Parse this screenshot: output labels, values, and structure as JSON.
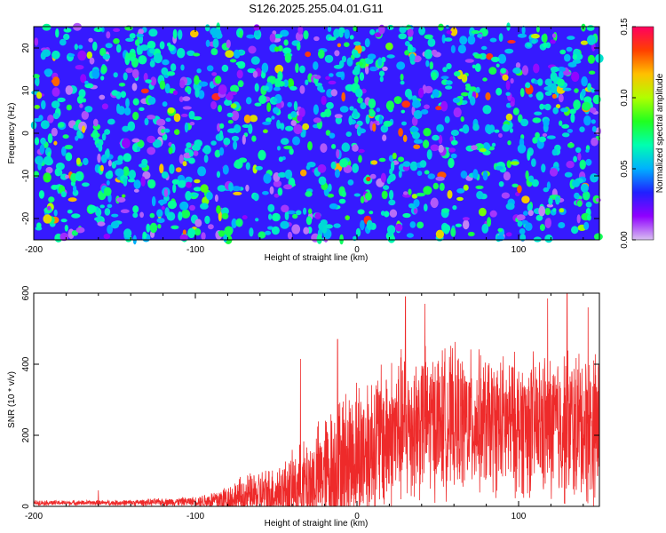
{
  "title": "S126.2025.255.04.01.G11",
  "chart_data": [
    {
      "type": "heatmap",
      "title": "S126.2025.255.04.01.G11",
      "xlabel": "Height of straight line (km)",
      "ylabel": "Frequency (Hz)",
      "xlim": [
        -200,
        150
      ],
      "ylim": [
        -25,
        25
      ],
      "xticks": [
        -200,
        -100,
        0,
        100
      ],
      "yticks": [
        -20,
        -10,
        0,
        10,
        20
      ],
      "colorbar": {
        "label": "Normalized spectral amplitude",
        "range": [
          0,
          0.15
        ],
        "ticks": [
          "0.00",
          "0.05",
          "0.10",
          "0.15"
        ],
        "colormap": [
          "#d8c0f0",
          "#9000ff",
          "#2020ff",
          "#00b0ff",
          "#00ffb0",
          "#20ff20",
          "#b0ff00",
          "#ffc000",
          "#ff4000",
          "#ff0060"
        ]
      },
      "background_level": 0.03,
      "typical_peak_level": 0.06,
      "max_peak_level": 0.14
    },
    {
      "type": "line",
      "xlabel": "Height of straight line (km)",
      "ylabel": "SNR (10 * v/v)",
      "xlim": [
        -200,
        150
      ],
      "ylim": [
        0,
        600
      ],
      "xticks": [
        -200,
        -100,
        0,
        100
      ],
      "yticks": [
        0,
        200,
        400,
        600
      ],
      "series": [
        {
          "name": "SNR",
          "color": "#ee2a2a",
          "x": [
            -200,
            -180,
            -160,
            -140,
            -120,
            -100,
            -90,
            -80,
            -70,
            -60,
            -50,
            -40,
            -30,
            -20,
            -10,
            0,
            10,
            20,
            30,
            40,
            50,
            60,
            70,
            80,
            90,
            100,
            110,
            120,
            130,
            140,
            150
          ],
          "base": [
            10,
            10,
            10,
            10,
            12,
            14,
            16,
            20,
            25,
            32,
            40,
            50,
            65,
            90,
            120,
            150,
            175,
            200,
            220,
            235,
            240,
            240,
            235,
            232,
            230,
            228,
            226,
            225,
            225,
            225,
            225
          ],
          "amplitude": [
            8,
            8,
            8,
            10,
            12,
            15,
            30,
            50,
            70,
            80,
            90,
            110,
            150,
            190,
            220,
            240,
            250,
            250,
            250,
            240,
            235,
            230,
            225,
            220,
            220,
            225,
            230,
            240,
            250,
            250,
            250
          ],
          "peaks": [
            [
              -160,
              45
            ],
            [
              -35,
              415
            ],
            [
              -12,
              470
            ],
            [
              30,
              590
            ],
            [
              42,
              570
            ],
            [
              118,
              585
            ],
            [
              130,
              600
            ],
            [
              143,
              560
            ]
          ]
        }
      ]
    }
  ]
}
